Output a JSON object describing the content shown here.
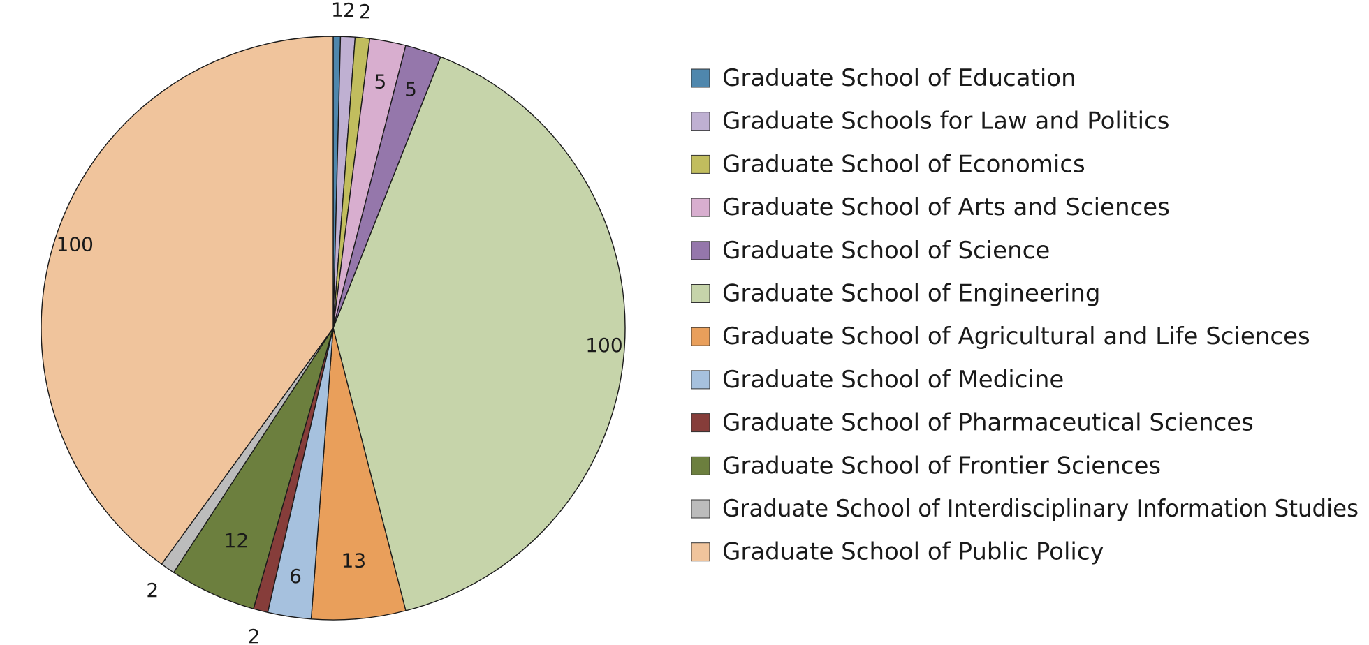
{
  "chart_data": {
    "type": "pie",
    "title": "",
    "start_angle_deg": 0,
    "direction": "clockwise",
    "slices": [
      {
        "label": "Graduate School of Education",
        "value": 1,
        "display": "1",
        "color": "#4f87ad"
      },
      {
        "label": "Graduate Schools for Law and Politics",
        "value": 2,
        "display": "2",
        "color": "#bfb0d2"
      },
      {
        "label": "Graduate School of Economics",
        "value": 2,
        "display": "2",
        "color": "#c1bd5e"
      },
      {
        "label": "Graduate School of Arts and Sciences",
        "value": 5,
        "display": "5",
        "color": "#d8aecf"
      },
      {
        "label": "Graduate School of Science",
        "value": 5,
        "display": "5",
        "color": "#9577ab"
      },
      {
        "label": "Graduate School of Engineering",
        "value": 100,
        "display": "100",
        "color": "#c6d4aa"
      },
      {
        "label": "Graduate School of Agricultural and Life Sciences",
        "value": 13,
        "display": "13",
        "color": "#e99f5b"
      },
      {
        "label": "Graduate School of Medicine",
        "value": 6,
        "display": "6",
        "color": "#a6c1de"
      },
      {
        "label": "Graduate School of Pharmaceutical Sciences",
        "value": 2,
        "display": "2",
        "color": "#863d3a"
      },
      {
        "label": "Graduate School of Frontier Sciences",
        "value": 12,
        "display": "12",
        "color": "#6c7f3e"
      },
      {
        "label": "Graduate School of Interdisciplinary Information Studies",
        "value": 2,
        "display": "2",
        "color": "#bcbcbc"
      },
      {
        "label": "Graduate School of Public Policy",
        "value": 100,
        "display": "100",
        "color": "#f0c49c"
      }
    ],
    "legend": {
      "position": "right"
    }
  }
}
